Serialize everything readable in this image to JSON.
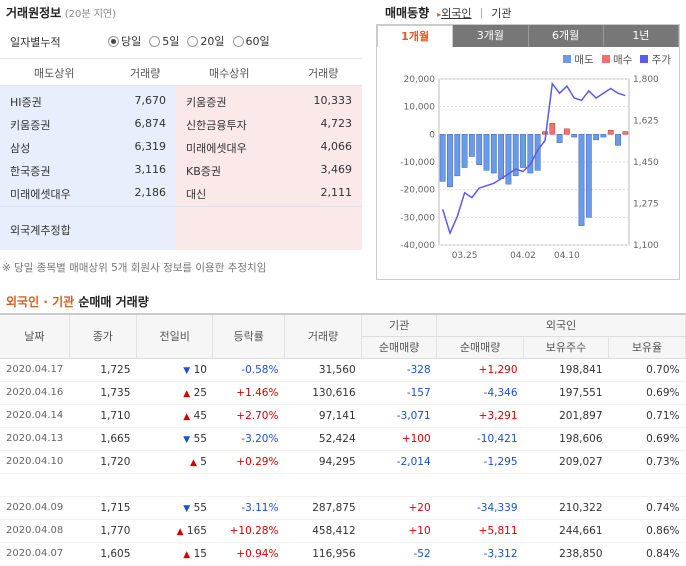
{
  "trade_info": {
    "title": "거래원정보",
    "delay": "(20분 지연)",
    "cumulative_label": "일자별누적",
    "radio_options": [
      {
        "label": "당일",
        "selected": true
      },
      {
        "label": "5일",
        "selected": false
      },
      {
        "label": "20일",
        "selected": false
      },
      {
        "label": "60일",
        "selected": false
      }
    ],
    "headers": {
      "sell_top": "매도상위",
      "sell_vol": "거래량",
      "buy_top": "매수상위",
      "buy_vol": "거래량"
    },
    "sell": [
      {
        "name": "HI증권",
        "vol": "7,670"
      },
      {
        "name": "키움증권",
        "vol": "6,874"
      },
      {
        "name": "삼성",
        "vol": "6,319"
      },
      {
        "name": "한국증권",
        "vol": "3,116"
      },
      {
        "name": "미래에셋대우",
        "vol": "2,186"
      }
    ],
    "buy": [
      {
        "name": "키움증권",
        "vol": "10,333"
      },
      {
        "name": "신한금융투자",
        "vol": "4,723"
      },
      {
        "name": "미래에셋대우",
        "vol": "4,066"
      },
      {
        "name": "KB증권",
        "vol": "3,469"
      },
      {
        "name": "대신",
        "vol": "2,111"
      }
    ],
    "foreign_label": "외국계추정합",
    "footnote": "※ 당일 종목별 매매상위 5개 회원사 정보를 이용한 추정치임"
  },
  "trading_trend": {
    "title": "매매동향",
    "filter_foreign": "외국인",
    "filter_separator": "|",
    "filter_institution": "기관",
    "tabs": [
      {
        "label": "1개월",
        "active": true
      },
      {
        "label": "3개월",
        "active": false
      },
      {
        "label": "6개월",
        "active": false
      },
      {
        "label": "1년",
        "active": false
      }
    ],
    "legend": {
      "sell": "매도",
      "buy": "매수",
      "price": "주가"
    },
    "colors": {
      "sell": "#6a9be8",
      "buy": "#f07070",
      "price": "#5a5af0"
    }
  },
  "chart_data": {
    "type": "bar",
    "y_left": {
      "min": -40000,
      "max": 20000,
      "ticks": [
        "20,000",
        "10,000",
        "0",
        "-10,000",
        "-20,000",
        "-30,000",
        "-40,000"
      ]
    },
    "y_right": {
      "min": 1100,
      "max": 1800,
      "ticks": [
        "1,800",
        "1,625",
        "1,450",
        "1,275",
        "1,100"
      ]
    },
    "x_labels": [
      "03.25",
      "04.02",
      "04.10"
    ],
    "x_label_index": [
      3,
      11,
      17
    ],
    "values": [
      -17000,
      -19000,
      -15000,
      -12000,
      -8000,
      -11000,
      -13000,
      -14000,
      -16000,
      -18000,
      -15000,
      -12000,
      -14000,
      -13000,
      1000,
      4000,
      -3000,
      2000,
      -1000,
      -33000,
      -30000,
      -2000,
      -1000,
      1500,
      -4000,
      1000
    ],
    "price": [
      1250,
      1150,
      1220,
      1320,
      1300,
      1340,
      1350,
      1360,
      1380,
      1400,
      1420,
      1410,
      1440,
      1500,
      1540,
      1780,
      1740,
      1770,
      1720,
      1710,
      1750,
      1720,
      1740,
      1760,
      1740,
      1730
    ]
  },
  "net_trading": {
    "title_foreign": "외국인",
    "title_dot": "·",
    "title_inst": "기관",
    "title_rest": "순매매 거래량",
    "headers": {
      "date": "날짜",
      "close": "종가",
      "change": "전일비",
      "rate": "등락률",
      "volume": "거래량",
      "institution": "기관",
      "foreign": "외국인",
      "inst_net": "순매매량",
      "foreign_net": "순매매량",
      "holdings": "보유주수",
      "ratio": "보유율"
    },
    "rows": [
      {
        "date": "2020.04.17",
        "close": "1,725",
        "dir": "down",
        "change": "10",
        "rate": "-0.58%",
        "volume": "31,560",
        "inst": "-328",
        "foreign": "+1,290",
        "holdings": "198,841",
        "ratio": "0.70%"
      },
      {
        "date": "2020.04.16",
        "close": "1,735",
        "dir": "up",
        "change": "25",
        "rate": "+1.46%",
        "volume": "130,616",
        "inst": "-157",
        "foreign": "-4,346",
        "holdings": "197,551",
        "ratio": "0.69%"
      },
      {
        "date": "2020.04.14",
        "close": "1,710",
        "dir": "up",
        "change": "45",
        "rate": "+2.70%",
        "volume": "97,141",
        "inst": "-3,071",
        "foreign": "+3,291",
        "holdings": "201,897",
        "ratio": "0.71%"
      },
      {
        "date": "2020.04.13",
        "close": "1,665",
        "dir": "down",
        "change": "55",
        "rate": "-3.20%",
        "volume": "52,424",
        "inst": "+100",
        "foreign": "-10,421",
        "holdings": "198,606",
        "ratio": "0.69%"
      },
      {
        "date": "2020.04.10",
        "close": "1,720",
        "dir": "up",
        "change": "5",
        "rate": "+0.29%",
        "volume": "94,295",
        "inst": "-2,014",
        "foreign": "-1,295",
        "holdings": "209,027",
        "ratio": "0.73%"
      },
      {
        "date": "2020.04.09",
        "close": "1,715",
        "dir": "down",
        "change": "55",
        "rate": "-3.11%",
        "volume": "287,875",
        "inst": "+20",
        "foreign": "-34,339",
        "holdings": "210,322",
        "ratio": "0.74%"
      },
      {
        "date": "2020.04.08",
        "close": "1,770",
        "dir": "up",
        "change": "165",
        "rate": "+10.28%",
        "volume": "458,412",
        "inst": "+10",
        "foreign": "+5,811",
        "holdings": "244,661",
        "ratio": "0.86%"
      },
      {
        "date": "2020.04.07",
        "close": "1,605",
        "dir": "up",
        "change": "15",
        "rate": "+0.94%",
        "volume": "116,956",
        "inst": "-52",
        "foreign": "-3,312",
        "holdings": "238,850",
        "ratio": "0.84%"
      }
    ]
  }
}
